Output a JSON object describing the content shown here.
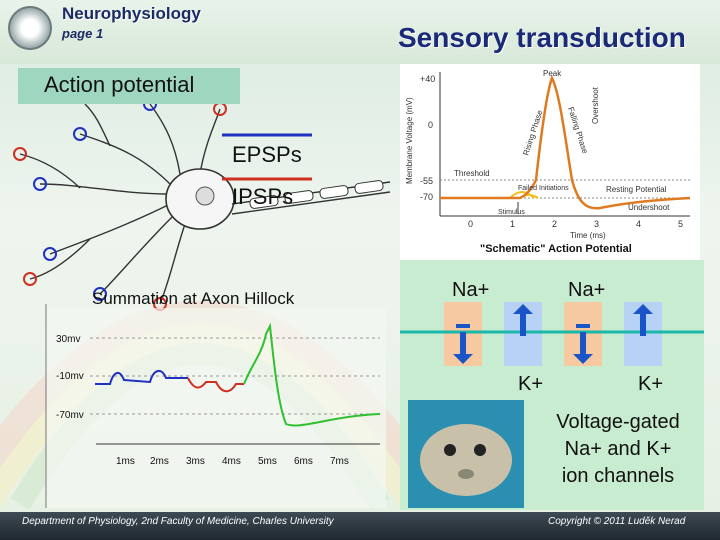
{
  "header": {
    "org": "Neurophysiology",
    "page": "page 1",
    "title": "Sensory transduction",
    "section": "Action potential"
  },
  "neuron": {
    "epsps": "EPSPs",
    "ipsps": "IPSPs",
    "colors": {
      "epsp": "#2030c0",
      "ipsp": "#d03020"
    }
  },
  "summation": {
    "title": "Summation at Axon Hillock",
    "y_ticks": [
      "30mv",
      "-10mv",
      "-70mv"
    ],
    "x_ticks": [
      "1ms",
      "2ms",
      "3ms",
      "4ms",
      "5ms",
      "6ms",
      "7ms"
    ]
  },
  "ap_chart": {
    "caption": "\"Schematic\" Action Potential",
    "ylabel": "Membrane Voltage (mV)",
    "xlabel": "Time (ms)",
    "y_ticks": [
      "+40",
      "0",
      "-55",
      "-70"
    ],
    "x_ticks": [
      "0",
      "1",
      "2",
      "3",
      "4",
      "5"
    ],
    "labels": {
      "peak": "Peak",
      "rising": "Rising Phase",
      "falling": "Falling Phase",
      "overshoot": "Overshoot",
      "threshold": "Threshold",
      "failed": "Failed Initiations",
      "resting": "Resting Potential",
      "undershoot": "Undershoot",
      "stimulus": "Stimulus"
    }
  },
  "channels": {
    "na1": "Na+",
    "na2": "Na+",
    "k1": "K+",
    "k2": "K+",
    "caption_lines": [
      "Voltage-gated",
      "Na+ and K+",
      "ion channels"
    ],
    "colors": {
      "na": "#f7c9a0",
      "k": "#b7d2f4",
      "arrow": "#1a55c8",
      "membrane": "#19b8a8"
    }
  },
  "footer": {
    "left": "Department of Physiology, 2nd Faculty of Medicine, Charles University",
    "right": "Copyright © 2011 Luděk Nerad"
  }
}
